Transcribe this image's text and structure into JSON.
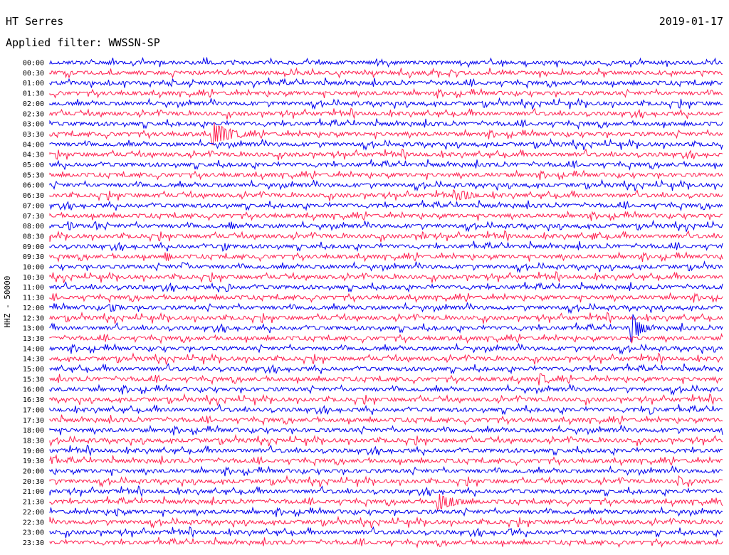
{
  "header": {
    "station": "HT Serres",
    "date": "2019-01-17",
    "filter": "Applied filter: WWSSN-SP"
  },
  "chart_data": {
    "type": "line",
    "title": "HT Serres",
    "ylabel": "HHZ - 50000",
    "row_labels": [
      "00:00",
      "00:30",
      "01:00",
      "01:30",
      "02:00",
      "02:30",
      "03:00",
      "03:30",
      "04:00",
      "04:30",
      "05:00",
      "05:30",
      "06:00",
      "06:30",
      "07:00",
      "07:30",
      "08:00",
      "08:30",
      "09:00",
      "09:30",
      "10:00",
      "10:30",
      "11:00",
      "11:30",
      "12:00",
      "12:30",
      "13:00",
      "13:30",
      "14:00",
      "14:30",
      "15:00",
      "15:30",
      "16:00",
      "16:30",
      "17:00",
      "17:30",
      "18:00",
      "18:30",
      "19:00",
      "19:30",
      "20:00",
      "20:30",
      "21:00",
      "21:30",
      "22:00",
      "22:30",
      "23:00",
      "23:30"
    ],
    "colors": [
      "#0000ee",
      "#ff2050"
    ],
    "events": [
      {
        "row": 7,
        "x": 0.245,
        "amp": 16,
        "dur": 0.06
      },
      {
        "row": 13,
        "x": 0.612,
        "amp": 7,
        "dur": 0.05
      },
      {
        "row": 16,
        "x": 0.03,
        "amp": 7,
        "dur": 0.01
      },
      {
        "row": 16,
        "x": 0.07,
        "amp": 6,
        "dur": 0.01
      },
      {
        "row": 16,
        "x": 0.27,
        "amp": 6,
        "dur": 0.01
      },
      {
        "row": 17,
        "x": 0.555,
        "amp": 6,
        "dur": 0.01
      },
      {
        "row": 17,
        "x": 0.81,
        "amp": 6,
        "dur": 0.01
      },
      {
        "row": 18,
        "x": 0.26,
        "amp": 7,
        "dur": 0.01
      },
      {
        "row": 19,
        "x": 0.175,
        "amp": 8,
        "dur": 0.01
      },
      {
        "row": 20,
        "x": 0.2,
        "amp": 6,
        "dur": 0.01
      },
      {
        "row": 22,
        "x": 0.265,
        "amp": 7,
        "dur": 0.01
      },
      {
        "row": 24,
        "x": 0.09,
        "amp": 6,
        "dur": 0.04
      },
      {
        "row": 26,
        "x": 0.865,
        "amp": 22,
        "dur": 0.03
      },
      {
        "row": 31,
        "x": 0.73,
        "amp": 9,
        "dur": 0.02
      },
      {
        "row": 34,
        "x": 0.895,
        "amp": 7,
        "dur": 0.01
      },
      {
        "row": 39,
        "x": 0.005,
        "amp": 6,
        "dur": 0.02
      },
      {
        "row": 41,
        "x": 0.935,
        "amp": 8,
        "dur": 0.02
      },
      {
        "row": 43,
        "x": 0.578,
        "amp": 12,
        "dur": 0.06
      },
      {
        "row": 44,
        "x": 0.1,
        "amp": 6,
        "dur": 0.01
      },
      {
        "row": 46,
        "x": 0.685,
        "amp": 6,
        "dur": 0.01
      }
    ]
  }
}
